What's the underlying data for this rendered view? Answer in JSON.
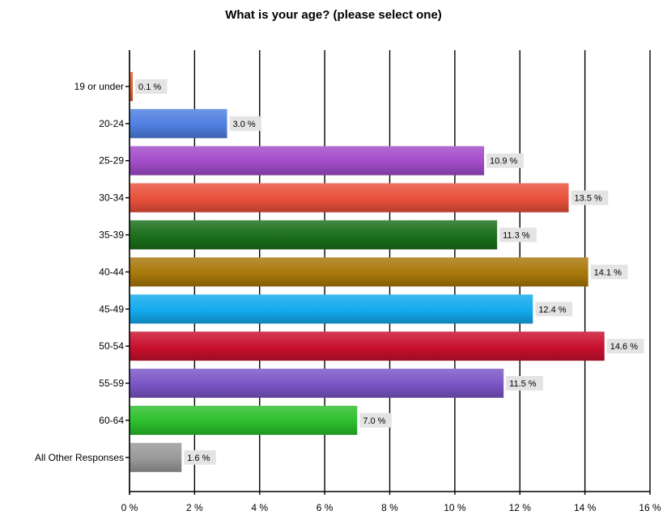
{
  "chart_data": {
    "type": "bar",
    "orientation": "horizontal",
    "title": "What is your age? (please select one)",
    "categories": [
      "19 or under",
      "20-24",
      "25-29",
      "30-34",
      "35-39",
      "40-44",
      "45-49",
      "50-54",
      "55-59",
      "60-64",
      "All Other Responses"
    ],
    "values": [
      0.1,
      3.0,
      10.9,
      13.5,
      11.3,
      14.1,
      12.4,
      14.6,
      11.5,
      7.0,
      1.6
    ],
    "data_labels": [
      "0.1 %",
      "3.0 %",
      "10.9 %",
      "13.5 %",
      "11.3 %",
      "14.1 %",
      "12.4 %",
      "14.6 %",
      "11.5 %",
      "7.0 %",
      "1.6 %"
    ],
    "colors": [
      "#e0602a",
      "#4f7fe0",
      "#a24bc9",
      "#e8503a",
      "#1b6f1b",
      "#a8780a",
      "#12aaee",
      "#c8102e",
      "#7a55c6",
      "#2cbf2c",
      "#999999"
    ],
    "x_ticks": [
      "0 %",
      "2 %",
      "4 %",
      "6 %",
      "8 %",
      "10 %",
      "12 %",
      "14 %",
      "16 %"
    ],
    "xlim": [
      0,
      16
    ],
    "grid": true,
    "legend": "none"
  }
}
